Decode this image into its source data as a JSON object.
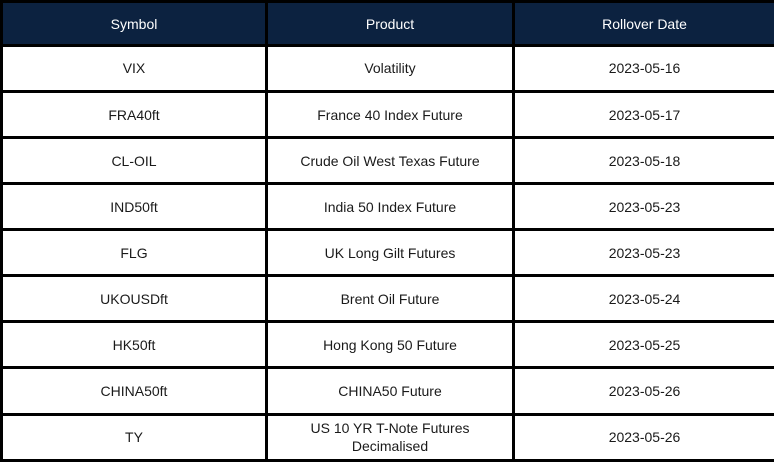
{
  "table": {
    "columns": [
      {
        "label": "Symbol"
      },
      {
        "label": "Product"
      },
      {
        "label": "Rollover Date"
      }
    ],
    "rows": [
      {
        "symbol": "VIX",
        "product": "Volatility",
        "rollover_date": "2023-05-16"
      },
      {
        "symbol": "FRA40ft",
        "product": "France 40 Index Future",
        "rollover_date": "2023-05-17"
      },
      {
        "symbol": "CL-OIL",
        "product": "Crude Oil West Texas Future",
        "rollover_date": "2023-05-18"
      },
      {
        "symbol": "IND50ft",
        "product": "India 50 Index Future",
        "rollover_date": "2023-05-23"
      },
      {
        "symbol": "FLG",
        "product": "UK Long Gilt Futures",
        "rollover_date": "2023-05-23"
      },
      {
        "symbol": "UKOUSDft",
        "product": "Brent Oil Future",
        "rollover_date": "2023-05-24"
      },
      {
        "symbol": "HK50ft",
        "product": "Hong Kong 50 Future",
        "rollover_date": "2023-05-25"
      },
      {
        "symbol": "CHINA50ft",
        "product": "CHINA50 Future",
        "rollover_date": "2023-05-26"
      },
      {
        "symbol": "TY",
        "product": "US 10 YR T-Note Futures Decimalised",
        "rollover_date": "2023-05-26"
      }
    ],
    "colors": {
      "header_bg": "#0c2240",
      "header_text": "#ffffff",
      "border": "#000000",
      "row_bg": "#ffffff",
      "cell_text": "#1a1a1a"
    }
  }
}
